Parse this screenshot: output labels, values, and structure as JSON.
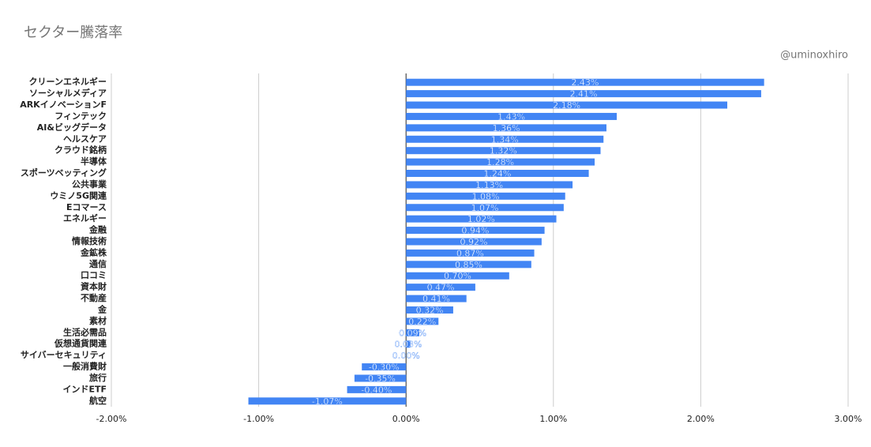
{
  "chart_data": {
    "type": "barh",
    "title": "セクター騰落率",
    "subtitle": "@uminoxhiro",
    "categories": [
      "クリーンエネルギー",
      "ソーシャルメディア",
      "ARKイノベーションF",
      "フィンテック",
      "AI&ビッグデータ",
      "ヘルスケア",
      "クラウド銘柄",
      "半導体",
      "スポーツベッティング",
      "公共事業",
      "ウミノ5G関連",
      "Eコマース",
      "エネルギー",
      "金融",
      "情報技術",
      "金鉱株",
      "通信",
      "口コミ",
      "資本財",
      "不動産",
      "金",
      "素材",
      "生活必需品",
      "仮想通貨関連",
      "サイバーセキュリティ",
      "一般消費財",
      "旅行",
      "インドETF",
      "航空"
    ],
    "values": [
      2.43,
      2.41,
      2.18,
      1.43,
      1.36,
      1.34,
      1.32,
      1.28,
      1.24,
      1.13,
      1.08,
      1.07,
      1.02,
      0.94,
      0.92,
      0.87,
      0.85,
      0.7,
      0.47,
      0.41,
      0.32,
      0.22,
      0.09,
      0.03,
      0.0,
      -0.3,
      -0.35,
      -0.4,
      -1.07
    ],
    "value_labels": [
      "2.43%",
      "2.41%",
      "2.18%",
      "1.43%",
      "1.36%",
      "1.34%",
      "1.32%",
      "1.28%",
      "1.24%",
      "1.13%",
      "1.08%",
      "1.07%",
      "1.02%",
      "0.94%",
      "0.92%",
      "0.87%",
      "0.85%",
      "0.70%",
      "0.47%",
      "0.41%",
      "0.32%",
      "0.22%",
      "0.09%",
      "0.03%",
      "0.00%",
      "-0.30%",
      "-0.35%",
      "-0.40%",
      "-1.07%"
    ],
    "color": "#4285f4",
    "xlim": [
      -2,
      3
    ],
    "xticks": [
      {
        "value": -2,
        "label": "-2.00%"
      },
      {
        "value": -1,
        "label": "-1.00%"
      },
      {
        "value": 0,
        "label": "0.00%"
      },
      {
        "value": 1,
        "label": "1.00%"
      },
      {
        "value": 2,
        "label": "2.00%"
      },
      {
        "value": 3,
        "label": "3.00%"
      }
    ],
    "grid": true
  }
}
